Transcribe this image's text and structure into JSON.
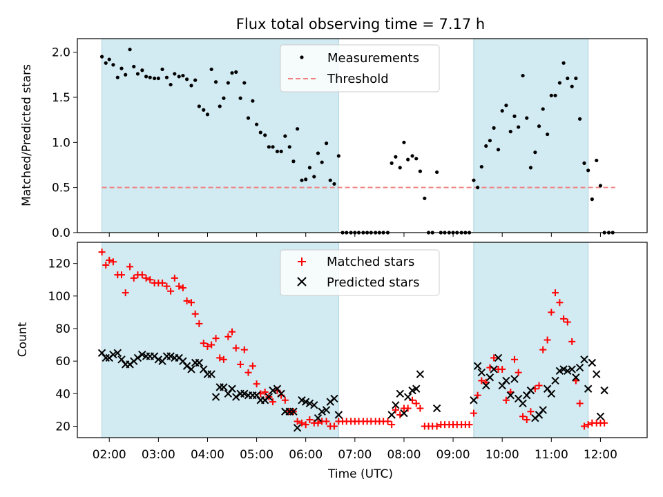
{
  "chart_data": [
    {
      "type": "scatter",
      "title": "Flux total observing time = 7.17 h",
      "xlabel": "",
      "ylabel": "Matched/Predicted stars",
      "xlim_hours": [
        1.35,
        12.95
      ],
      "ylim": [
        0,
        2.15
      ],
      "yticks": [
        0,
        0.5,
        1.0,
        1.5,
        2.0
      ],
      "ytick_labels": [
        "0.0",
        "0.5",
        "1.0",
        "1.5",
        "2.0"
      ],
      "xticks_hours": [
        2,
        3,
        4,
        5,
        6,
        7,
        8,
        9,
        10,
        11,
        12
      ],
      "shaded_intervals_hours": [
        [
          1.85,
          6.67
        ],
        [
          9.42,
          11.75
        ]
      ],
      "threshold": {
        "label": "Threshold",
        "value": 0.5,
        "x_range_hours": [
          1.85,
          12.3
        ],
        "color": "#f08080"
      },
      "legend": {
        "placement": "top-center",
        "entries": [
          "Measurements",
          "Threshold"
        ]
      },
      "series": [
        {
          "name": "Measurements",
          "marker": "dot",
          "color": "#000000",
          "x_hours": [
            1.85,
            1.93,
            2.0,
            2.08,
            2.17,
            2.25,
            2.33,
            2.42,
            2.5,
            2.58,
            2.67,
            2.75,
            2.83,
            2.92,
            3.0,
            3.08,
            3.17,
            3.25,
            3.33,
            3.42,
            3.5,
            3.58,
            3.67,
            3.75,
            3.83,
            3.92,
            4.0,
            4.08,
            4.17,
            4.25,
            4.33,
            4.42,
            4.5,
            4.58,
            4.67,
            4.75,
            4.83,
            4.92,
            5.0,
            5.08,
            5.17,
            5.25,
            5.33,
            5.42,
            5.5,
            5.58,
            5.67,
            5.75,
            5.83,
            5.92,
            6.0,
            6.08,
            6.17,
            6.25,
            6.33,
            6.42,
            6.5,
            6.58,
            6.67,
            6.75,
            6.83,
            6.92,
            7.0,
            7.08,
            7.17,
            7.25,
            7.33,
            7.42,
            7.5,
            7.58,
            7.67,
            7.75,
            7.83,
            7.92,
            8.0,
            8.08,
            8.17,
            8.25,
            8.33,
            8.42,
            8.5,
            8.58,
            8.67,
            8.75,
            8.83,
            8.92,
            9.0,
            9.08,
            9.17,
            9.25,
            9.33,
            9.42,
            9.5,
            9.58,
            9.67,
            9.75,
            9.83,
            9.92,
            10.0,
            10.08,
            10.17,
            10.25,
            10.33,
            10.42,
            10.5,
            10.58,
            10.67,
            10.75,
            10.83,
            10.92,
            11.0,
            11.08,
            11.17,
            11.25,
            11.33,
            11.42,
            11.5,
            11.58,
            11.67,
            11.75,
            11.83,
            11.92,
            12.0,
            12.08,
            12.17,
            12.25
          ],
          "y": [
            1.95,
            1.88,
            1.92,
            1.86,
            1.72,
            1.82,
            1.75,
            2.03,
            1.84,
            1.76,
            1.8,
            1.73,
            1.72,
            1.71,
            1.71,
            1.81,
            1.72,
            1.64,
            1.76,
            1.73,
            1.74,
            1.7,
            1.63,
            1.69,
            1.4,
            1.36,
            1.31,
            1.81,
            1.67,
            1.4,
            1.49,
            1.66,
            1.77,
            1.78,
            1.49,
            1.66,
            1.27,
            1.46,
            1.2,
            1.11,
            1.08,
            0.95,
            0.95,
            0.9,
            0.9,
            1.07,
            0.95,
            0.79,
            1.15,
            0.58,
            0.59,
            0.72,
            0.62,
            0.88,
            0.78,
            0.99,
            0.58,
            0.54,
            0.85,
            0,
            0,
            0,
            0,
            0,
            0,
            0,
            0,
            0,
            0,
            0,
            0,
            0.77,
            0.84,
            0.72,
            1.0,
            0.81,
            0.85,
            0.82,
            0.68,
            0.38,
            0,
            0,
            0.67,
            0,
            0,
            0,
            0,
            0,
            0,
            0,
            0,
            0.58,
            0.5,
            0.73,
            0.96,
            1.02,
            1.16,
            0.92,
            1.35,
            1.41,
            1.12,
            1.29,
            1.17,
            1.74,
            1.27,
            0.72,
            0.89,
            1.18,
            1.37,
            1.09,
            1.52,
            1.52,
            1.66,
            1.88,
            1.71,
            1.62,
            1.71,
            1.26,
            0.77,
            0.69,
            0.37,
            0.8,
            0.52,
            0,
            0,
            0
          ]
        }
      ]
    },
    {
      "type": "scatter",
      "title": "",
      "xlabel": "Time (UTC)",
      "ylabel": "Count",
      "xlim_hours": [
        1.35,
        12.95
      ],
      "ylim": [
        13,
        133
      ],
      "yticks": [
        20,
        40,
        60,
        80,
        100,
        120
      ],
      "ytick_labels": [
        "20",
        "40",
        "60",
        "80",
        "100",
        "120"
      ],
      "xticks_hours": [
        2,
        3,
        4,
        5,
        6,
        7,
        8,
        9,
        10,
        11,
        12
      ],
      "xtick_labels": [
        "02:00",
        "03:00",
        "04:00",
        "05:00",
        "06:00",
        "07:00",
        "08:00",
        "09:00",
        "10:00",
        "11:00",
        "12:00"
      ],
      "shaded_intervals_hours": [
        [
          1.85,
          6.67
        ],
        [
          9.42,
          11.75
        ]
      ],
      "legend": {
        "placement": "top-center",
        "entries": [
          "Matched stars",
          "Predicted stars"
        ]
      },
      "x_hours": [
        1.85,
        1.93,
        2.0,
        2.08,
        2.17,
        2.25,
        2.33,
        2.42,
        2.5,
        2.58,
        2.67,
        2.75,
        2.83,
        2.92,
        3.0,
        3.08,
        3.17,
        3.25,
        3.33,
        3.42,
        3.5,
        3.58,
        3.67,
        3.75,
        3.83,
        3.92,
        4.0,
        4.08,
        4.17,
        4.25,
        4.33,
        4.42,
        4.5,
        4.58,
        4.67,
        4.75,
        4.83,
        4.92,
        5.0,
        5.08,
        5.17,
        5.25,
        5.33,
        5.42,
        5.5,
        5.58,
        5.67,
        5.75,
        5.83,
        5.92,
        6.0,
        6.08,
        6.17,
        6.25,
        6.33,
        6.42,
        6.5,
        6.58,
        6.67,
        6.75,
        6.83,
        6.92,
        7.0,
        7.08,
        7.17,
        7.25,
        7.33,
        7.42,
        7.5,
        7.58,
        7.67,
        7.75,
        7.83,
        7.92,
        8.0,
        8.08,
        8.17,
        8.25,
        8.33,
        8.42,
        8.5,
        8.58,
        8.67,
        8.75,
        8.83,
        8.92,
        9.0,
        9.08,
        9.17,
        9.25,
        9.33,
        9.42,
        9.5,
        9.58,
        9.67,
        9.75,
        9.83,
        9.92,
        10.0,
        10.08,
        10.17,
        10.25,
        10.33,
        10.42,
        10.5,
        10.58,
        10.67,
        10.75,
        10.83,
        10.92,
        11.0,
        11.08,
        11.17,
        11.25,
        11.33,
        11.42,
        11.5,
        11.58,
        11.67,
        11.75,
        11.83,
        11.92,
        12.0,
        12.08,
        12.17,
        12.25
      ],
      "series": [
        {
          "name": "Matched stars",
          "marker": "plus",
          "color": "#ff0000",
          "values": [
            127,
            119,
            122,
            121,
            113,
            113,
            102,
            118,
            111,
            113,
            113,
            111,
            110,
            108,
            108,
            108,
            106,
            103,
            111,
            106,
            105,
            97,
            96,
            89,
            83,
            71,
            69,
            70,
            74,
            62,
            61,
            75,
            78,
            68,
            58,
            67,
            53,
            57,
            46,
            40,
            41,
            38,
            35,
            42,
            39,
            36,
            29,
            29,
            23,
            22,
            21,
            24,
            22,
            22,
            23,
            23,
            20,
            20,
            23,
            23,
            23,
            23,
            23,
            23,
            23,
            23,
            23,
            23,
            23,
            23,
            23,
            21,
            30,
            27,
            31,
            31,
            36,
            34,
            31,
            20,
            20,
            20,
            20,
            21,
            21,
            21,
            21,
            21,
            21,
            21,
            21,
            28,
            39,
            48,
            47,
            56,
            62,
            55,
            55,
            36,
            41,
            61,
            53,
            26,
            24,
            29,
            43,
            45,
            67,
            73,
            90,
            102,
            96,
            86,
            84,
            72,
            48,
            34,
            20,
            21,
            22,
            22,
            22,
            22
          ]
        },
        {
          "name": "Predicted stars",
          "marker": "x",
          "color": "#000000",
          "values": [
            65,
            62,
            62,
            64,
            65,
            61,
            58,
            58,
            60,
            62,
            64,
            63,
            63,
            63,
            61,
            60,
            63,
            63,
            62,
            62,
            60,
            57,
            55,
            59,
            59,
            55,
            52,
            52,
            38,
            44,
            44,
            40,
            43,
            38,
            40,
            40,
            39,
            39,
            39,
            36,
            36,
            38,
            42,
            43,
            40,
            29,
            29,
            29,
            19,
            36,
            35,
            34,
            33,
            25,
            29,
            30,
            35,
            37,
            27,
            null,
            null,
            null,
            null,
            null,
            null,
            null,
            null,
            null,
            null,
            null,
            null,
            27,
            33,
            40,
            28,
            38,
            42,
            43,
            52,
            null,
            null,
            null,
            31,
            null,
            null,
            null,
            null,
            null,
            null,
            null,
            null,
            36,
            57,
            53,
            45,
            50,
            55,
            62,
            45,
            48,
            39,
            49,
            37,
            34,
            39,
            42,
            25,
            27,
            30,
            43,
            40,
            48,
            54,
            55,
            54,
            55,
            50,
            56,
            61,
            43,
            59,
            52,
            26,
            42
          ]
        }
      ]
    }
  ]
}
